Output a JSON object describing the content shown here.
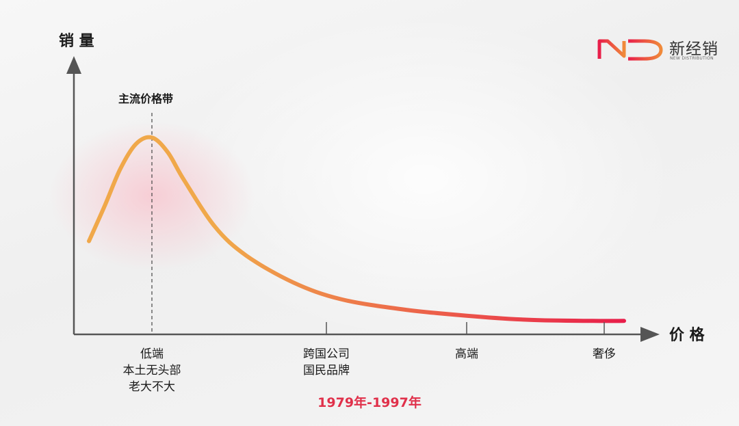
{
  "chart_data": {
    "type": "line",
    "title": "",
    "ylabel": "销 量",
    "xlabel": "价 格",
    "annotation": "主流价格带",
    "period": "1979年-1997年",
    "ticks": [
      {
        "lines": [
          "低端",
          "本土无头部",
          "老大不大"
        ]
      },
      {
        "lines": [
          "跨国公司",
          "国民品牌"
        ]
      },
      {
        "lines": [
          "高端"
        ]
      },
      {
        "lines": [
          "奢侈"
        ]
      }
    ],
    "series": [
      {
        "x": [
          0.0,
          0.1,
          0.2,
          0.3,
          0.4,
          0.5,
          0.6,
          0.8,
          1.0,
          1.3,
          1.6,
          2.0,
          2.4,
          2.8,
          3.2,
          3.4
        ],
        "values": [
          0.45,
          0.62,
          0.8,
          0.92,
          0.95,
          0.88,
          0.75,
          0.52,
          0.38,
          0.25,
          0.17,
          0.12,
          0.09,
          0.07,
          0.065,
          0.065
        ]
      }
    ],
    "peak_x": 0.4,
    "xlim": [
      -0.6,
      3.4
    ],
    "ylim": [
      0,
      1.0
    ],
    "colors": {
      "curve_start": "#f0a84a",
      "curve_end": "#e81e4a",
      "fill": "#f9c2cc",
      "axis": "#555555",
      "dashed": "#444444"
    }
  },
  "logo": {
    "mark": "ND",
    "cn": "新经销",
    "en": "NEW DISTRIBUTION"
  }
}
